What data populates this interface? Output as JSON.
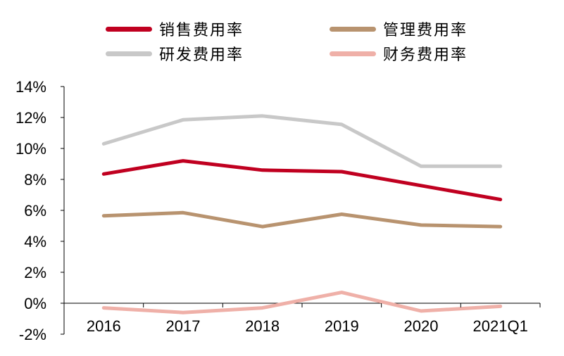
{
  "chart_data": {
    "type": "line",
    "categories": [
      "2016",
      "2017",
      "2018",
      "2019",
      "2020",
      "2021Q1"
    ],
    "ylim": [
      -2,
      14
    ],
    "yticks": [
      "-2%",
      "0%",
      "2%",
      "4%",
      "6%",
      "8%",
      "10%",
      "12%",
      "14%"
    ],
    "ytick_values": [
      -2,
      0,
      2,
      4,
      6,
      8,
      10,
      12,
      14
    ],
    "legend_position": "top",
    "grid": false,
    "series": [
      {
        "name": "销售费用率",
        "color": "#c00020",
        "values": [
          8.35,
          9.2,
          8.6,
          8.5,
          7.6,
          6.7
        ]
      },
      {
        "name": "管理费用率",
        "color": "#b8936f",
        "values": [
          5.65,
          5.85,
          4.95,
          5.75,
          5.05,
          4.95
        ]
      },
      {
        "name": "研发费用率",
        "color": "#c8c8c8",
        "values": [
          10.3,
          11.85,
          12.1,
          11.55,
          8.85,
          8.85
        ]
      },
      {
        "name": "财务费用率",
        "color": "#efb0a8",
        "values": [
          -0.3,
          -0.6,
          -0.3,
          0.7,
          -0.5,
          -0.2
        ]
      }
    ]
  }
}
